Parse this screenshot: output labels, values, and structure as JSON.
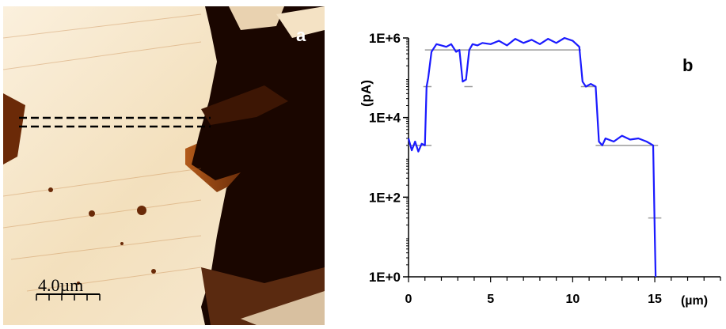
{
  "panel_a": {
    "label": "a",
    "scalebar_label": "4.0µm",
    "colors": {
      "bright": "#f6e7cf",
      "mid": "#c8782c",
      "dark": "#180500"
    }
  },
  "chart_data": {
    "type": "line",
    "panel_label": "b",
    "xlabel": "(µm)",
    "ylabel": "(pA)",
    "y_scale": "log",
    "xlim": [
      0,
      19
    ],
    "ylim": [
      1,
      1000000
    ],
    "x_ticks": [
      0,
      5,
      10,
      15
    ],
    "x_tick_labels": [
      "0",
      "5",
      "10",
      "15"
    ],
    "y_ticks": [
      1,
      100,
      10000,
      1000000
    ],
    "y_tick_labels": [
      "1E+0",
      "1E+2",
      "1E+4",
      "1E+6"
    ],
    "grid": false,
    "series": [
      {
        "color": "#1a1aff",
        "x": [
          0,
          0.2,
          0.4,
          0.6,
          0.8,
          1.0,
          1.1,
          1.2,
          1.4,
          1.7,
          2.0,
          2.3,
          2.6,
          2.9,
          3.1,
          3.3,
          3.5,
          3.7,
          3.9,
          4.2,
          4.5,
          5.0,
          5.5,
          6.0,
          6.5,
          7.0,
          7.5,
          8.0,
          8.5,
          9.0,
          9.5,
          10.0,
          10.4,
          10.6,
          10.8,
          11.1,
          11.4,
          11.6,
          11.8,
          12.0,
          12.5,
          13.0,
          13.5,
          14.0,
          14.5,
          14.9,
          15.0,
          15.05
        ],
        "y": [
          3000,
          1500,
          2500,
          1400,
          2200,
          2000,
          60000,
          100000,
          450000,
          700000,
          650000,
          600000,
          700000,
          450000,
          500000,
          80000,
          90000,
          500000,
          700000,
          650000,
          750000,
          700000,
          850000,
          650000,
          950000,
          750000,
          900000,
          700000,
          950000,
          750000,
          1000000,
          850000,
          600000,
          80000,
          60000,
          70000,
          60000,
          2500,
          2000,
          3000,
          2500,
          3500,
          2800,
          3000,
          2500,
          2000,
          10,
          1
        ]
      }
    ],
    "level_markers": [
      {
        "x1": 1.0,
        "x2": 10.5,
        "y": 500000
      },
      {
        "x1": 3.4,
        "x2": 3.9,
        "y": 60000
      },
      {
        "x1": 0.9,
        "x2": 1.4,
        "y": 60000
      },
      {
        "x1": 10.5,
        "x2": 11.4,
        "y": 60000
      },
      {
        "x1": 0.0,
        "x2": 1.4,
        "y": 2000
      },
      {
        "x1": 11.4,
        "x2": 15.2,
        "y": 2000
      },
      {
        "x1": 14.6,
        "x2": 15.4,
        "y": 30
      }
    ]
  }
}
